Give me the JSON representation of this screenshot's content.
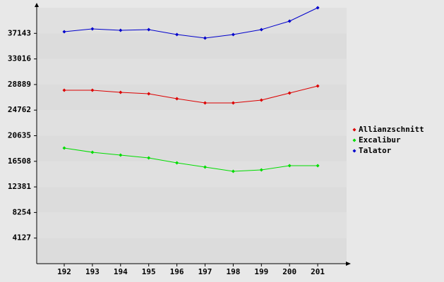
{
  "chart_data": {
    "type": "line",
    "categories": [
      "192",
      "193",
      "194",
      "195",
      "196",
      "197",
      "198",
      "199",
      "200",
      "201"
    ],
    "series": [
      {
        "name": "Allianzschnitt",
        "color": "#dd0000",
        "values": [
          27968,
          27968,
          27627,
          27400,
          26604,
          25922,
          25922,
          26377,
          27514,
          28650
        ]
      },
      {
        "name": "Excalibur",
        "color": "#00dd00",
        "values": [
          18645,
          17963,
          17508,
          17054,
          16258,
          15576,
          14894,
          15121,
          15803,
          15803
        ]
      },
      {
        "name": "Talator",
        "color": "#0000cc",
        "values": [
          37405,
          37860,
          37632,
          37746,
          36950,
          36382,
          36950,
          37746,
          39110,
          41270
        ]
      }
    ],
    "ylim": [
      0,
      41270
    ],
    "yticks": [
      4127,
      8254,
      12381,
      16508,
      20635,
      24762,
      28889,
      33016,
      37143
    ],
    "legend": "right"
  }
}
